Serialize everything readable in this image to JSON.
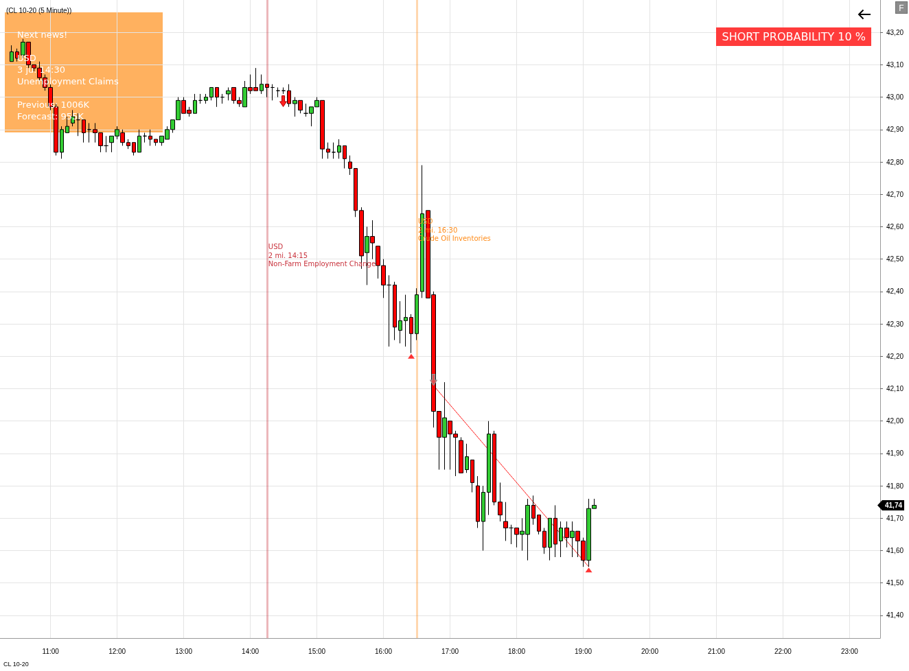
{
  "chart_data": {
    "type": "candlestick",
    "title": "(CL 10-20 (5 Minute))",
    "x": [
      10.417,
      10.5,
      10.583,
      10.667,
      10.75,
      10.833,
      10.917,
      11,
      11.083,
      11.167,
      11.25,
      11.333,
      11.417,
      11.5,
      11.583,
      11.667,
      11.75,
      11.833,
      11.917,
      12,
      12.083,
      12.167,
      12.25,
      12.333,
      12.417,
      12.5,
      12.583,
      12.667,
      12.75,
      12.833,
      12.917,
      13,
      13.083,
      13.167,
      13.25,
      13.333,
      13.417,
      13.5,
      13.583,
      13.667,
      13.75,
      13.833,
      13.917,
      14,
      14.083,
      14.167,
      14.25,
      14.333,
      14.417,
      14.5,
      14.583,
      14.667,
      14.75,
      14.833,
      14.917,
      15,
      15.083,
      15.167,
      15.25,
      15.333,
      15.417,
      15.5,
      15.583,
      15.667,
      15.75,
      15.833,
      15.917,
      16,
      16.083,
      16.167,
      16.25,
      16.333,
      16.417,
      16.5,
      16.583,
      16.667,
      16.75,
      16.833,
      16.917,
      17,
      17.083,
      17.167,
      17.25,
      17.333,
      17.417,
      17.5,
      17.583,
      17.667,
      17.75,
      17.833,
      17.917,
      18,
      18.083,
      18.167,
      18.25,
      18.333,
      18.417,
      18.5,
      18.583,
      18.667,
      18.75,
      18.833,
      18.917,
      19,
      19.083,
      19.167
    ],
    "ohlc": [
      [
        43.11,
        43.16,
        43.11,
        43.14
      ],
      [
        43.14,
        43.15,
        43.11,
        43.12
      ],
      [
        43.13,
        43.18,
        43.12,
        43.17
      ],
      [
        43.17,
        43.17,
        43.09,
        43.1
      ],
      [
        43.1,
        43.1,
        43.08,
        43.09
      ],
      [
        43.09,
        43.11,
        43.05,
        43.06
      ],
      [
        43.06,
        43.07,
        43.02,
        43.03
      ],
      [
        43.03,
        43.04,
        42.96,
        42.97
      ],
      [
        42.97,
        42.98,
        42.82,
        42.83
      ],
      [
        42.83,
        42.91,
        42.81,
        42.9
      ],
      [
        42.89,
        42.94,
        42.89,
        42.91
      ],
      [
        42.92,
        42.96,
        42.91,
        42.94
      ],
      [
        42.93,
        42.95,
        42.88,
        42.93
      ],
      [
        42.93,
        42.93,
        42.86,
        42.89
      ],
      [
        42.9,
        42.92,
        42.86,
        42.9
      ],
      [
        42.9,
        42.92,
        42.86,
        42.89
      ],
      [
        42.89,
        42.89,
        42.83,
        42.85
      ],
      [
        42.85,
        42.88,
        42.83,
        42.85
      ],
      [
        42.86,
        42.88,
        42.83,
        42.88
      ],
      [
        42.88,
        42.91,
        42.87,
        42.9
      ],
      [
        42.89,
        42.9,
        42.85,
        42.86
      ],
      [
        42.86,
        42.87,
        42.84,
        42.85
      ],
      [
        42.86,
        42.86,
        42.82,
        42.83
      ],
      [
        42.83,
        42.9,
        42.83,
        42.88
      ],
      [
        42.88,
        42.89,
        42.86,
        42.88
      ],
      [
        42.88,
        42.9,
        42.85,
        42.87
      ],
      [
        42.87,
        42.87,
        42.85,
        42.86
      ],
      [
        42.86,
        42.88,
        42.85,
        42.88
      ],
      [
        42.87,
        42.91,
        42.87,
        42.9
      ],
      [
        42.9,
        42.93,
        42.89,
        42.93
      ],
      [
        42.93,
        43.0,
        42.93,
        42.99
      ],
      [
        42.99,
        43.0,
        42.95,
        42.95
      ],
      [
        42.96,
        42.97,
        42.94,
        42.95
      ],
      [
        42.95,
        43.01,
        42.95,
        42.99
      ],
      [
        42.99,
        43.01,
        42.98,
        42.99
      ],
      [
        42.99,
        43.01,
        42.98,
        43.0
      ],
      [
        43.0,
        43.03,
        42.99,
        43.03
      ],
      [
        43.03,
        43.03,
        42.97,
        43.0
      ],
      [
        43.0,
        43.01,
        42.98,
        43.0
      ],
      [
        43.01,
        43.03,
        42.99,
        43.02
      ],
      [
        43.03,
        43.03,
        42.98,
        42.99
      ],
      [
        42.99,
        43.0,
        42.97,
        42.98
      ],
      [
        42.97,
        43.05,
        42.97,
        43.03
      ],
      [
        43.03,
        43.07,
        43.01,
        43.02
      ],
      [
        43.03,
        43.09,
        43.02,
        43.02
      ],
      [
        43.02,
        43.07,
        43.01,
        43.04
      ],
      [
        43.04,
        43.04,
        43.0,
        43.03
      ],
      [
        43.03,
        43.04,
        42.99,
        43.03
      ],
      [
        43.02,
        43.03,
        43.0,
        43.02
      ],
      [
        43.02,
        43.03,
        43.01,
        43.02
      ],
      [
        43.02,
        43.04,
        42.97,
        42.98
      ],
      [
        42.98,
        43.0,
        42.94,
        42.99
      ],
      [
        42.99,
        42.99,
        42.95,
        42.96
      ],
      [
        42.95,
        42.98,
        42.94,
        42.95
      ],
      [
        42.95,
        42.97,
        42.91,
        42.97
      ],
      [
        42.97,
        43.0,
        42.97,
        42.99
      ],
      [
        42.99,
        42.99,
        42.81,
        42.84
      ],
      [
        42.84,
        42.86,
        42.81,
        42.83
      ],
      [
        42.83,
        42.86,
        42.81,
        42.83
      ],
      [
        42.83,
        42.87,
        42.81,
        42.85
      ],
      [
        42.85,
        42.85,
        42.78,
        42.81
      ],
      [
        42.8,
        42.82,
        42.76,
        42.78
      ],
      [
        42.78,
        42.78,
        42.63,
        42.65
      ],
      [
        42.65,
        42.66,
        42.47,
        42.51
      ],
      [
        42.52,
        42.6,
        42.42,
        42.57
      ],
      [
        42.57,
        42.62,
        42.5,
        42.55
      ],
      [
        42.54,
        42.54,
        42.44,
        42.48
      ],
      [
        42.48,
        42.5,
        42.38,
        42.42
      ],
      [
        42.42,
        42.45,
        42.23,
        42.42
      ],
      [
        42.42,
        42.43,
        42.25,
        42.29
      ],
      [
        42.28,
        42.37,
        42.24,
        42.31
      ],
      [
        42.31,
        42.39,
        42.23,
        42.32
      ],
      [
        42.32,
        42.33,
        42.21,
        42.27
      ],
      [
        42.27,
        42.41,
        42.25,
        42.39
      ],
      [
        42.4,
        42.79,
        42.38,
        42.64
      ],
      [
        42.65,
        42.65,
        42.38,
        42.38
      ],
      [
        42.39,
        42.4,
        41.98,
        42.03
      ],
      [
        42.03,
        42.03,
        41.85,
        41.95
      ],
      [
        41.95,
        42.12,
        41.85,
        42.01
      ],
      [
        42.0,
        42.0,
        41.85,
        41.96
      ],
      [
        41.96,
        41.97,
        41.83,
        41.95
      ],
      [
        41.94,
        41.95,
        41.84,
        41.84
      ],
      [
        41.85,
        41.93,
        41.84,
        41.89
      ],
      [
        41.88,
        41.88,
        41.78,
        41.81
      ],
      [
        41.8,
        41.83,
        41.67,
        41.69
      ],
      [
        41.69,
        41.8,
        41.6,
        41.78
      ],
      [
        41.78,
        42.0,
        41.71,
        41.96
      ],
      [
        41.96,
        41.97,
        41.74,
        41.75
      ],
      [
        41.75,
        41.81,
        41.69,
        41.71
      ],
      [
        41.69,
        41.75,
        41.63,
        41.67
      ],
      [
        41.67,
        41.68,
        41.62,
        41.67
      ],
      [
        41.67,
        41.67,
        41.61,
        41.65
      ],
      [
        41.65,
        41.7,
        41.6,
        41.66
      ],
      [
        41.65,
        41.76,
        41.57,
        41.74
      ],
      [
        41.74,
        41.77,
        41.68,
        41.7
      ],
      [
        41.71,
        41.71,
        41.65,
        41.66
      ],
      [
        41.66,
        41.67,
        41.59,
        41.61
      ],
      [
        41.61,
        41.7,
        41.57,
        41.7
      ],
      [
        41.7,
        41.74,
        41.58,
        41.62
      ],
      [
        41.63,
        41.69,
        41.58,
        41.67
      ],
      [
        41.67,
        41.69,
        41.61,
        41.64
      ],
      [
        41.64,
        41.69,
        41.58,
        41.66
      ],
      [
        41.66,
        41.66,
        41.58,
        41.63
      ],
      [
        41.63,
        41.64,
        41.55,
        41.57
      ],
      [
        41.57,
        41.76,
        41.55,
        41.73
      ],
      [
        41.73,
        41.76,
        41.73,
        41.74
      ]
    ],
    "series": [
      {
        "type": "scatter",
        "marker": "triangle",
        "color": "#ff0000",
        "x": [
          16.417,
          19.083
        ],
        "values": [
          42.2,
          41.54
        ]
      },
      {
        "type": "line",
        "marker": "none",
        "line_style": "dotted",
        "color": "#ff0000",
        "x": [
          16.75,
          19.083
        ],
        "values": [
          42.11,
          41.55
        ]
      }
    ],
    "xlim": [
      10.24,
      23.46
    ],
    "xticks": [
      {
        "value": 11,
        "label": "11:00"
      },
      {
        "value": 12,
        "label": "12:00"
      },
      {
        "value": 13,
        "label": "13:00"
      },
      {
        "value": 14,
        "label": "14:00"
      },
      {
        "value": 15,
        "label": "15:00"
      },
      {
        "value": 16,
        "label": "16:00"
      },
      {
        "value": 17,
        "label": "17:00"
      },
      {
        "value": 18,
        "label": "18:00"
      },
      {
        "value": 19,
        "label": "19:00"
      },
      {
        "value": 20,
        "label": "20:00"
      },
      {
        "value": 21,
        "label": "21:00"
      },
      {
        "value": 22,
        "label": "22:00"
      },
      {
        "value": 23,
        "label": "23:00"
      }
    ],
    "ylim": [
      41.33,
      43.3
    ],
    "yticks": [
      {
        "value": 41.4,
        "label": "41,40"
      },
      {
        "value": 41.5,
        "label": "41,50"
      },
      {
        "value": 41.6,
        "label": "41,60"
      },
      {
        "value": 41.7,
        "label": "41,70"
      },
      {
        "value": 41.8,
        "label": "41,80"
      },
      {
        "value": 41.9,
        "label": "41,90"
      },
      {
        "value": 42.0,
        "label": "42,00"
      },
      {
        "value": 42.1,
        "label": "42,10"
      },
      {
        "value": 42.2,
        "label": "42,20"
      },
      {
        "value": 42.3,
        "label": "42,30"
      },
      {
        "value": 42.4,
        "label": "42,40"
      },
      {
        "value": 42.5,
        "label": "42,50"
      },
      {
        "value": 42.6,
        "label": "42,60"
      },
      {
        "value": 42.7,
        "label": "42,70"
      },
      {
        "value": 42.8,
        "label": "42,80"
      },
      {
        "value": 42.9,
        "label": "42,90"
      },
      {
        "value": 43.0,
        "label": "43,00"
      },
      {
        "value": 43.1,
        "label": "43,10"
      },
      {
        "value": 43.2,
        "label": "43,20"
      }
    ],
    "grid": true,
    "ref_lines": [
      {
        "axis": "x",
        "value": 14.25,
        "label": "USD\n2 mi. 14:15\nNon-Farm Employment Change",
        "color": "#c8323c"
      },
      {
        "axis": "x",
        "value": 16.5,
        "label": "USD\n2 mi. 16:30\nCrude Oil Inventories",
        "color": "#ff8c1a"
      }
    ],
    "annotations": [
      "Next news!\n\nUSD\n3 ju. 14:30\nUnemployment Claims\n\nPrevious: 1006K\nForecast: 955K",
      "SHORT PROBABILITY 10 %",
      "41,74",
      "F",
      "CL 10-20"
    ]
  }
}
